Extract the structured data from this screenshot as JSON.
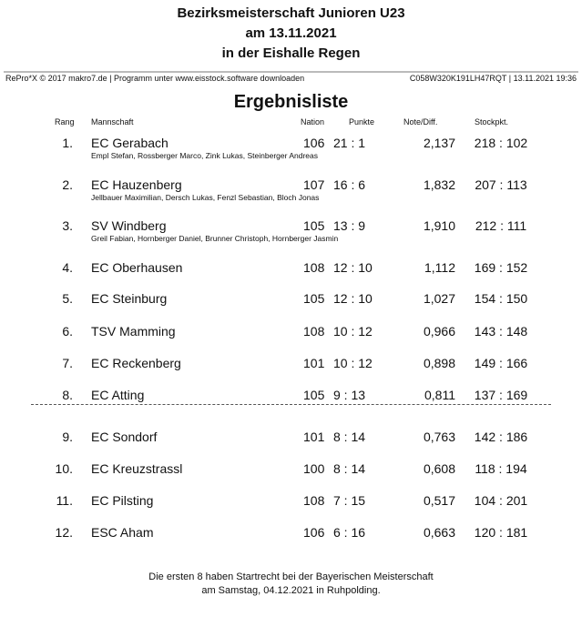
{
  "title": [
    "Bezirksmeisterschaft Junioren U23",
    "am 13.11.2021",
    "in der Eishalle Regen"
  ],
  "meta_left": "RePro*X © 2017 makro7.de | Programm unter www.eisstock.software downloaden",
  "meta_right": "C058W320K191LH47RQT | 13.11.2021 19:36",
  "heading": "Ergebnisliste",
  "columns": {
    "rank": "Rang",
    "team": "Mannschaft",
    "nation": "Nation",
    "points": "Punkte",
    "note": "Note/Diff.",
    "stock": "Stockpkt."
  },
  "rows": [
    {
      "rank": "1.",
      "team": "EC Gerabach",
      "nation": "106",
      "points": "21 : 1",
      "note": "2,137",
      "stock": "218 : 102",
      "members": "Empl Stefan, Rossberger Marco, Zink Lukas, Steinberger Andreas"
    },
    {
      "rank": "2.",
      "team": "EC Hauzenberg",
      "nation": "107",
      "points": "16 : 6",
      "note": "1,832",
      "stock": "207 : 113",
      "members": "Jellbauer Maximilian, Dersch Lukas, Fenzl Sebastian, Bloch Jonas"
    },
    {
      "rank": "3.",
      "team": "SV Windberg",
      "nation": "105",
      "points": "13 : 9",
      "note": "1,910",
      "stock": "212 : 111",
      "members": "Greil Fabian, Hornberger Daniel, Brunner Christoph, Hornberger Jasmin"
    },
    {
      "rank": "4.",
      "team": "EC Oberhausen",
      "nation": "108",
      "points": "12 : 10",
      "note": "1,112",
      "stock": "169 : 152"
    },
    {
      "rank": "5.",
      "team": "EC Steinburg",
      "nation": "105",
      "points": "12 : 10",
      "note": "1,027",
      "stock": "154 : 150"
    },
    {
      "rank": "6.",
      "team": "TSV Mamming",
      "nation": "108",
      "points": "10 : 12",
      "note": "0,966",
      "stock": "143 : 148"
    },
    {
      "rank": "7.",
      "team": "EC Reckenberg",
      "nation": "101",
      "points": "10 : 12",
      "note": "0,898",
      "stock": "149 : 166"
    },
    {
      "rank": "8.",
      "team": "EC Atting",
      "nation": "105",
      "points": "9 : 13",
      "note": "0,811",
      "stock": "137 : 169"
    },
    {
      "rank": "9.",
      "team": "EC Sondorf",
      "nation": "101",
      "points": "8 : 14",
      "note": "0,763",
      "stock": "142 : 186"
    },
    {
      "rank": "10.",
      "team": "EC Kreuzstrassl",
      "nation": "100",
      "points": "8 : 14",
      "note": "0,608",
      "stock": "118 : 194"
    },
    {
      "rank": "11.",
      "team": "EC Pilsting",
      "nation": "108",
      "points": "7 : 15",
      "note": "0,517",
      "stock": "104 : 201"
    },
    {
      "rank": "12.",
      "team": "ESC Aham",
      "nation": "106",
      "points": "6 : 16",
      "note": "0,663",
      "stock": "120 : 181"
    }
  ],
  "footer": [
    "Die ersten 8 haben Startrecht bei der Bayerischen Meisterschaft",
    "am Samstag, 04.12.2021 in Ruhpolding."
  ]
}
